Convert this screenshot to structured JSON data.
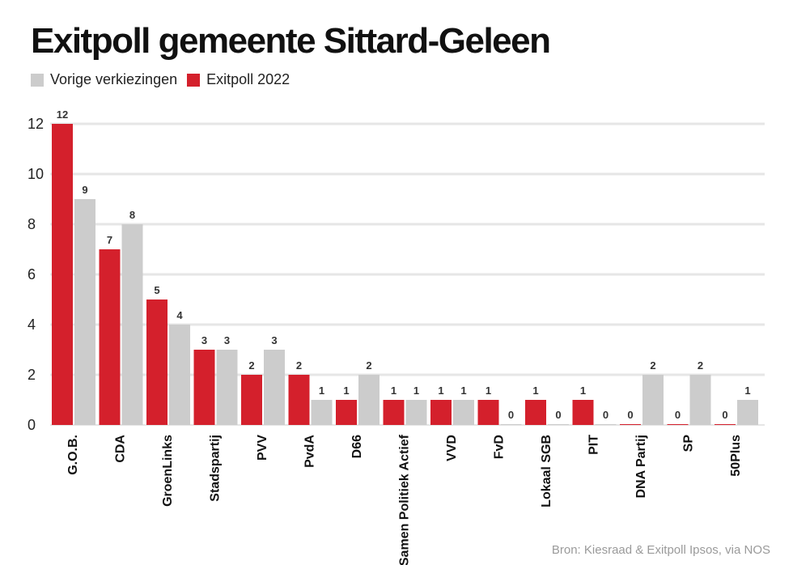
{
  "chart_data": {
    "type": "bar",
    "title": "Exitpoll gemeente Sittard-Geleen",
    "categories": [
      "G.O.B.",
      "CDA",
      "GroenLinks",
      "Stadspartij",
      "PVV",
      "PvdA",
      "D66",
      "Samen Politiek Actief",
      "VVD",
      "FvD",
      "Lokaal SGB",
      "PIT",
      "DNA Partij",
      "SP",
      "50Plus"
    ],
    "series": [
      {
        "name": "Exitpoll 2022",
        "color": "#d4202c",
        "values": [
          12,
          7,
          5,
          3,
          2,
          2,
          1,
          1,
          1,
          1,
          1,
          1,
          0,
          0,
          0
        ]
      },
      {
        "name": "Vorige verkiezingen",
        "color": "#cccccc",
        "values": [
          9,
          8,
          4,
          3,
          3,
          1,
          2,
          1,
          1,
          0,
          0,
          0,
          2,
          2,
          1
        ]
      }
    ],
    "legend_order": [
      "Vorige verkiezingen",
      "Exitpoll 2022"
    ],
    "yticks": [
      0,
      2,
      4,
      6,
      8,
      10,
      12
    ],
    "ylim": [
      0,
      12
    ],
    "grid": true,
    "legend": "top-left",
    "source": "Bron: Kiesraad & Exitpoll Ipsos, via NOS"
  }
}
